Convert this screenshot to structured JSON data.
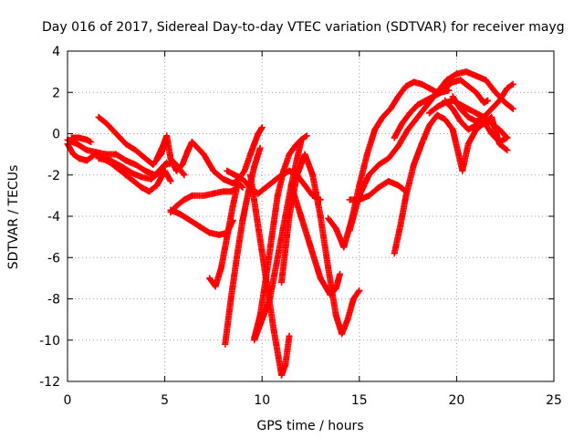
{
  "chart_data": {
    "type": "scatter",
    "title": "Day 016 of 2017, Sidereal Day-to-day VTEC variation (SDTVAR) for receiver mayg",
    "xlabel": "GPS time / hours",
    "ylabel": "SDTVAR / TECUs",
    "xlim": [
      0,
      25
    ],
    "ylim": [
      -12,
      4
    ],
    "xticks": [
      0,
      5,
      10,
      15,
      20,
      25
    ],
    "yticks": [
      -12,
      -10,
      -8,
      -6,
      -4,
      -2,
      0,
      2,
      4
    ],
    "grid": true,
    "marker": "+",
    "color": "#ff0000",
    "series": [
      {
        "x": [
          0.0,
          0.3,
          0.6,
          1.0,
          1.4,
          1.8,
          2.2,
          2.6,
          3.0,
          3.4,
          3.8,
          4.2,
          4.6,
          5.0,
          5.3
        ],
        "y": [
          -0.5,
          -1.0,
          -1.2,
          -1.3,
          -1.0,
          -1.2,
          -1.4,
          -1.7,
          -2.0,
          -2.3,
          -2.6,
          -2.8,
          -2.5,
          -1.8,
          -2.3
        ]
      },
      {
        "x": [
          0.0,
          0.5,
          1.0,
          1.5,
          2.0,
          2.5,
          3.0,
          3.5,
          4.0,
          4.5,
          5.0,
          5.5,
          6.0
        ],
        "y": [
          -0.3,
          -0.5,
          -0.8,
          -0.9,
          -1.0,
          -1.0,
          -1.3,
          -1.5,
          -1.8,
          -2.0,
          -1.5,
          -1.4,
          -2.0
        ]
      },
      {
        "x": [
          0.2,
          0.6,
          1.0,
          1.2
        ],
        "y": [
          -0.2,
          -0.2,
          -0.3,
          -0.4
        ]
      },
      {
        "x": [
          1.6,
          2.0,
          2.5,
          3.0,
          3.5,
          4.0,
          4.4,
          4.8,
          5.0
        ],
        "y": [
          0.8,
          0.5,
          0.0,
          -0.5,
          -0.8,
          -1.2,
          -1.5,
          -1.0,
          -0.5
        ]
      },
      {
        "x": [
          1.6,
          2.2,
          2.8,
          3.3,
          3.8,
          4.3,
          4.8,
          5.1
        ],
        "y": [
          -1.2,
          -1.3,
          -1.6,
          -1.9,
          -2.1,
          -2.2,
          -1.8,
          -1.4
        ]
      },
      {
        "x": [
          4.6,
          4.9,
          5.1,
          5.3,
          5.6,
          5.9,
          6.2,
          6.4,
          7.0,
          7.5,
          8.0,
          8.5,
          8.7,
          9.0
        ],
        "y": [
          -1.2,
          -0.6,
          -0.1,
          -1.2,
          -1.8,
          -1.5,
          -0.8,
          -0.4,
          -1.0,
          -1.8,
          -2.2,
          -2.4,
          -2.3,
          -2.6
        ]
      },
      {
        "x": [
          5.3,
          5.6,
          6.0,
          6.4,
          7.0,
          7.5,
          8.0,
          8.4,
          8.6
        ],
        "y": [
          -3.8,
          -3.5,
          -3.2,
          -3.0,
          -3.0,
          -2.9,
          -2.8,
          -2.8,
          -2.7
        ]
      },
      {
        "x": [
          5.3,
          5.8,
          6.3,
          6.8,
          7.3,
          7.8,
          8.2,
          8.5
        ],
        "y": [
          -3.7,
          -3.9,
          -4.2,
          -4.5,
          -4.8,
          -4.9,
          -4.8,
          -4.2
        ]
      },
      {
        "x": [
          7.3,
          7.6,
          7.9,
          8.2,
          8.5,
          8.8,
          9.1,
          9.4,
          9.6,
          9.8,
          10.0
        ],
        "y": [
          -7.0,
          -7.4,
          -6.5,
          -5.0,
          -3.5,
          -2.2,
          -1.8,
          -1.0,
          -0.5,
          0.0,
          0.3
        ]
      },
      {
        "x": [
          8.1,
          8.4,
          8.7,
          9.0,
          9.3,
          9.6,
          9.9
        ],
        "y": [
          -10.2,
          -8.0,
          -6.0,
          -4.2,
          -2.8,
          -1.6,
          -0.7
        ]
      },
      {
        "x": [
          8.2,
          8.6,
          9.0,
          9.4,
          9.8,
          10.2,
          10.6,
          11.0,
          11.4,
          11.8,
          12.2,
          12.6,
          13.0
        ],
        "y": [
          -1.8,
          -2.0,
          -2.2,
          -2.6,
          -2.9,
          -2.6,
          -2.3,
          -2.0,
          -1.8,
          -2.0,
          -2.5,
          -3.0,
          -3.2
        ]
      },
      {
        "x": [
          9.6,
          9.9,
          10.2,
          10.5,
          10.8,
          11.1,
          11.4,
          11.7,
          12.0,
          12.3
        ],
        "y": [
          -9.9,
          -8.8,
          -7.0,
          -5.0,
          -3.0,
          -1.8,
          -1.0,
          -0.6,
          -0.3,
          -0.1
        ]
      },
      {
        "x": [
          9.6,
          10.0,
          10.4,
          10.8,
          11.2,
          11.5,
          11.8,
          12.0
        ],
        "y": [
          -10.0,
          -9.0,
          -8.0,
          -6.0,
          -4.0,
          -2.5,
          -1.2,
          -0.4
        ]
      },
      {
        "x": [
          9.4,
          9.8,
          10.2,
          10.6,
          11.0,
          11.2,
          11.4
        ],
        "y": [
          -2.0,
          -4.5,
          -7.0,
          -9.5,
          -11.7,
          -11.2,
          -9.8
        ]
      },
      {
        "x": [
          11.0,
          11.4,
          11.8,
          12.2,
          12.6,
          13.0,
          13.4,
          13.8,
          14.1,
          14.4,
          14.7,
          15.0
        ],
        "y": [
          -7.2,
          -4.0,
          -2.0,
          -1.0,
          -2.0,
          -4.0,
          -6.5,
          -8.8,
          -9.7,
          -9.0,
          -8.0,
          -7.6
        ]
      },
      {
        "x": [
          11.5,
          12.0,
          12.5,
          13.0,
          13.5,
          13.8,
          14.0
        ],
        "y": [
          -2.5,
          -4.0,
          -5.5,
          -7.0,
          -7.8,
          -7.5,
          -6.8
        ]
      },
      {
        "x": [
          13.4,
          13.8,
          14.2,
          14.6,
          15.0,
          15.4,
          15.8,
          16.2,
          16.6,
          17.0,
          17.4,
          17.8,
          18.2,
          18.6,
          19.0,
          19.4,
          19.8,
          20.2,
          20.6,
          21.0,
          21.4,
          21.6
        ],
        "y": [
          -4.1,
          -4.6,
          -5.5,
          -4.2,
          -2.5,
          -1.0,
          0.2,
          0.8,
          1.2,
          1.8,
          2.3,
          2.5,
          2.4,
          2.2,
          2.0,
          2.2,
          2.5,
          2.6,
          2.3,
          2.0,
          1.5,
          1.6
        ]
      },
      {
        "x": [
          14.5,
          15.0,
          15.5,
          16.0,
          16.5,
          17.0,
          17.5,
          18.0,
          18.5,
          19.0,
          19.5,
          20.0,
          20.5,
          21.0,
          21.5,
          22.0,
          22.5,
          22.9
        ],
        "y": [
          -4.7,
          -3.0,
          -2.0,
          -1.5,
          -1.2,
          -0.6,
          0.2,
          0.8,
          1.4,
          2.0,
          2.6,
          2.9,
          3.0,
          2.8,
          2.6,
          2.0,
          1.5,
          1.2
        ]
      },
      {
        "x": [
          14.5,
          15.0,
          15.5,
          16.0,
          16.5,
          17.0,
          17.4
        ],
        "y": [
          -3.2,
          -3.2,
          -3.0,
          -2.6,
          -2.3,
          -2.5,
          -2.8
        ]
      },
      {
        "x": [
          16.8,
          17.1,
          17.4,
          17.8,
          18.2,
          18.6,
          19.0,
          19.4,
          19.8,
          20.1,
          20.3,
          20.6,
          21.0,
          21.4,
          21.8,
          22.2,
          22.6
        ],
        "y": [
          -5.8,
          -4.5,
          -3.0,
          -1.5,
          -0.5,
          0.4,
          0.9,
          0.7,
          0.2,
          -1.0,
          -1.8,
          -0.5,
          0.2,
          0.5,
          0.8,
          -0.5,
          -0.8
        ]
      },
      {
        "x": [
          16.8,
          17.2,
          17.6,
          18.0,
          18.4,
          18.8,
          19.2,
          19.6
        ],
        "y": [
          -0.2,
          0.5,
          1.0,
          1.4,
          1.6,
          1.8,
          2.0,
          2.1
        ]
      },
      {
        "x": [
          19.8,
          20.2,
          20.6,
          21.0,
          21.4,
          21.8,
          22.2,
          22.6,
          22.9
        ],
        "y": [
          1.8,
          1.2,
          0.8,
          0.6,
          0.8,
          1.2,
          1.6,
          2.2,
          2.4
        ]
      },
      {
        "x": [
          19.4,
          19.8,
          20.2,
          20.6,
          21.0,
          21.4,
          21.8,
          22.2,
          22.6
        ],
        "y": [
          1.6,
          1.2,
          0.6,
          0.2,
          0.4,
          0.6,
          0.0,
          -0.4,
          -0.2
        ]
      },
      {
        "x": [
          18.6,
          19.0,
          19.4,
          19.8,
          20.2,
          20.6,
          21.0,
          21.4,
          21.8,
          22.2,
          22.6
        ],
        "y": [
          1.0,
          1.3,
          1.5,
          1.6,
          1.4,
          1.2,
          1.0,
          0.8,
          0.5,
          0.2,
          -0.2
        ]
      }
    ]
  }
}
